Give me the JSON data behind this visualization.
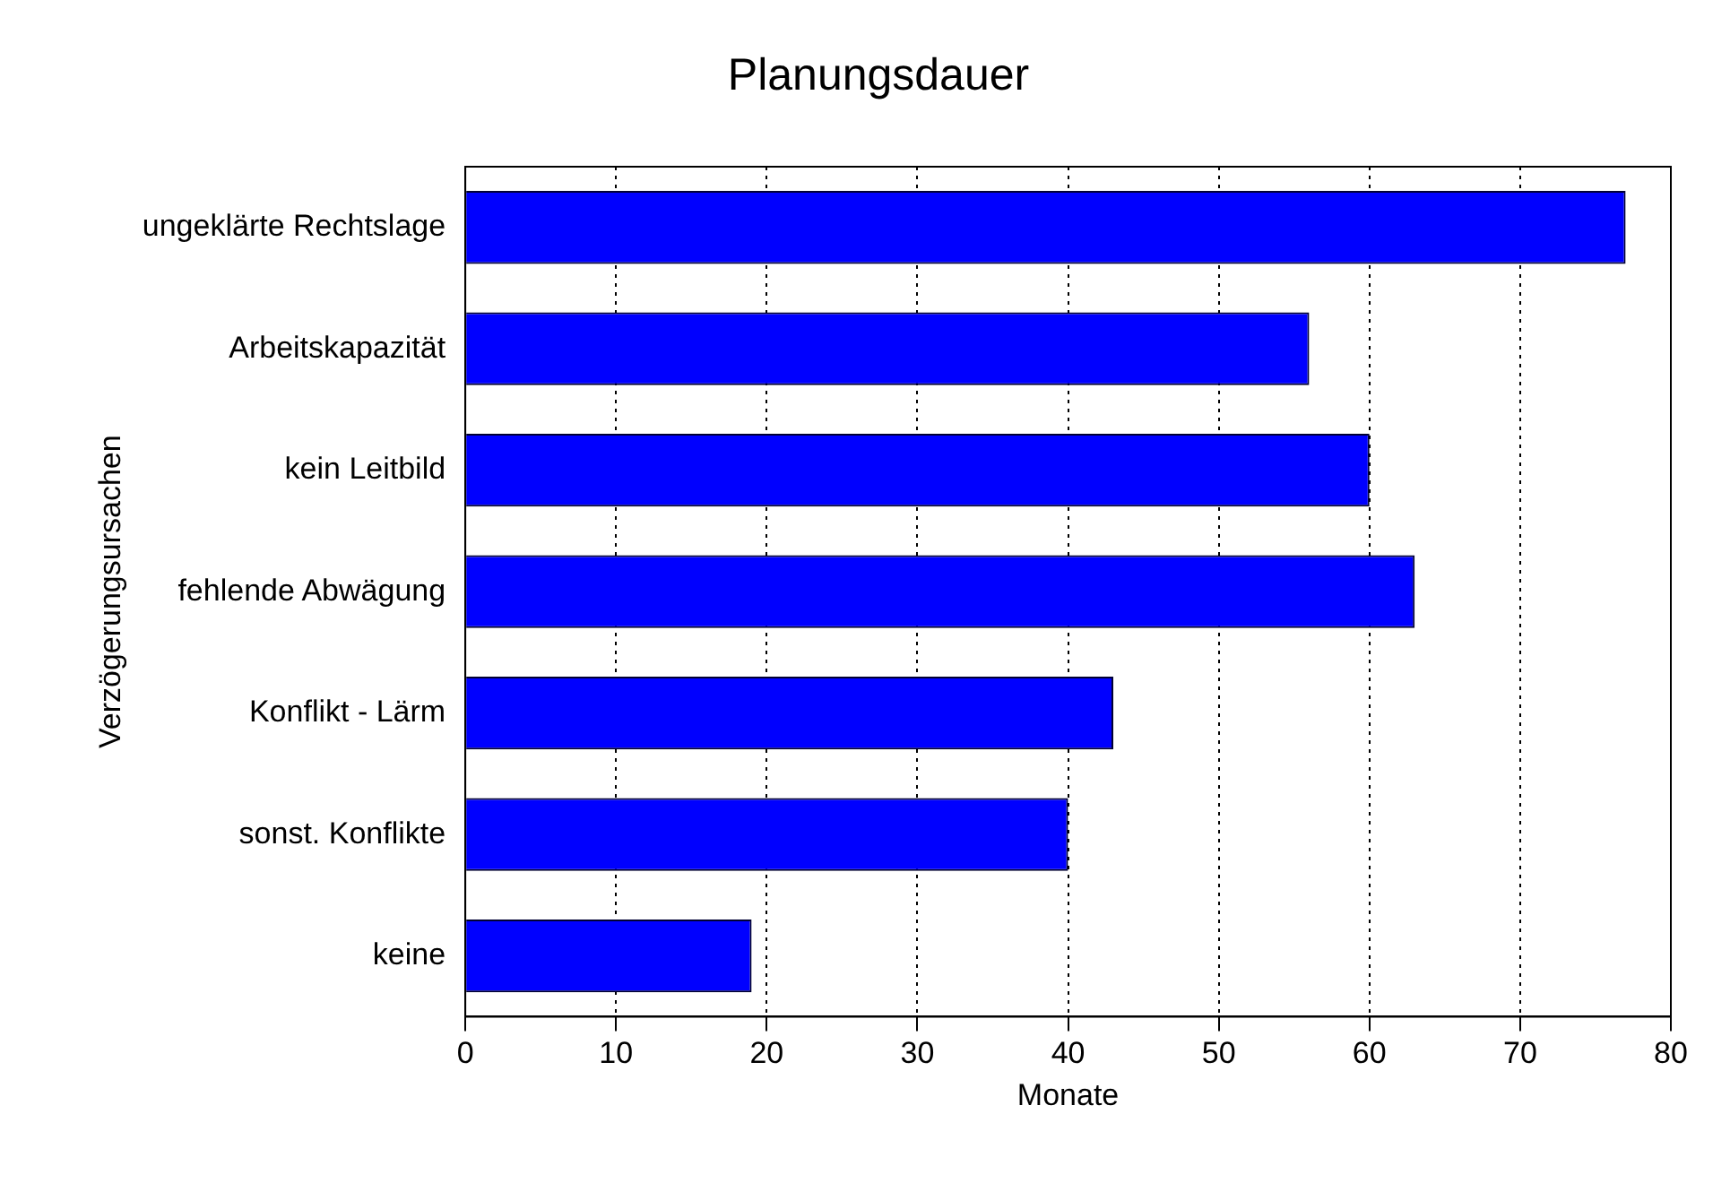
{
  "chart_data": {
    "type": "bar",
    "orientation": "horizontal",
    "title": "Planungsdauer",
    "xlabel": "Monate",
    "ylabel": "Verzögerungsursachen",
    "categories": [
      "ungeklärte Rechtslage",
      "Arbeitskapazität",
      "kein Leitbild",
      "fehlende Abwägung",
      "Konflikt - Lärm",
      "sonst. Konflikte",
      "keine"
    ],
    "values": [
      77,
      56,
      60,
      63,
      43,
      40,
      19
    ],
    "color": "#0000ff",
    "xlim": [
      0,
      80
    ],
    "xticks": [
      0,
      10,
      20,
      30,
      40,
      50,
      60,
      70,
      80
    ],
    "grid": "x",
    "legend": false
  }
}
